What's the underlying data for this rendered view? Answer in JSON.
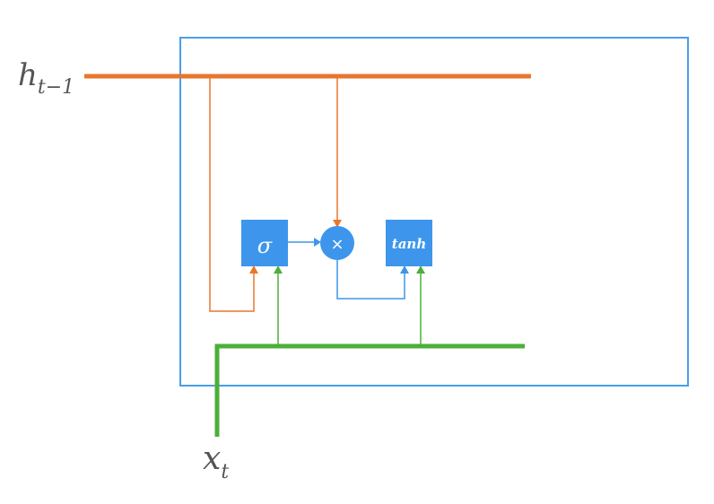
{
  "diagram": {
    "input_hidden": {
      "base": "h",
      "subscript": "t−1"
    },
    "input_x": {
      "base": "x",
      "subscript": "t"
    },
    "sigma_gate": {
      "label": "σ"
    },
    "multiply_op": {
      "label": "×"
    },
    "tanh_gate": {
      "label": "tanh"
    }
  },
  "colors": {
    "cell_border": "#4a9ee8",
    "hidden_line": "#e8772e",
    "input_line": "#4caf3a",
    "node_fill": "#3d96ec",
    "label_text": "#555555"
  }
}
